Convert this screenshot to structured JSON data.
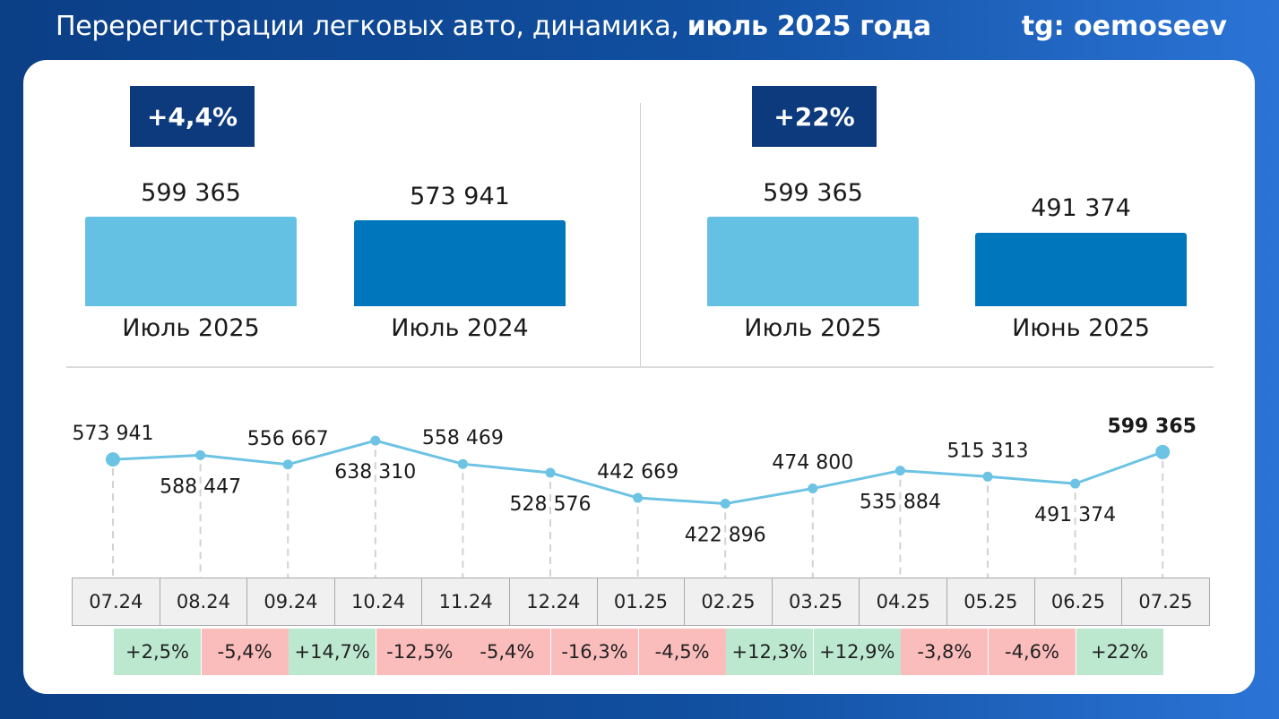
{
  "header": {
    "title_regular": "Перерегистрации легковых авто, динамика,",
    "title_bold": "июль 2025 года",
    "handle": "tg: oemoseev"
  },
  "comparisons": [
    {
      "badge": "+4,4%",
      "bars": [
        {
          "value": 599365,
          "value_label": "599 365",
          "label": "Июль 2025",
          "color": "#65c1e4"
        },
        {
          "value": 573941,
          "value_label": "573 941",
          "label": "Июль 2024",
          "color": "#0077bd"
        }
      ]
    },
    {
      "badge": "+22%",
      "bars": [
        {
          "value": 599365,
          "value_label": "599 365",
          "label": "Июль 2025",
          "color": "#65c1e4"
        },
        {
          "value": 491374,
          "value_label": "491 374",
          "label": "Июнь 2025",
          "color": "#0077bd"
        }
      ]
    }
  ],
  "chart_data": {
    "type": "line",
    "title": "Перерегистрации легковых авто, динамика, июль 2025 года",
    "categories": [
      "07.24",
      "08.24",
      "09.24",
      "10.24",
      "11.24",
      "12.24",
      "01.25",
      "02.25",
      "03.25",
      "04.25",
      "05.25",
      "06.25",
      "07.25"
    ],
    "values": [
      573941,
      588447,
      556667,
      638310,
      558469,
      528576,
      442669,
      422896,
      474800,
      535884,
      515313,
      491374,
      599365
    ],
    "value_labels": [
      "573 941",
      "588 447",
      "556 667",
      "638 310",
      "558 469",
      "528 576",
      "442 669",
      "422 896",
      "474 800",
      "535 884",
      "515 313",
      "491 374",
      "599 365"
    ],
    "changes": [
      "+2,5%",
      "-5,4%",
      "+14,7%",
      "-12,5%",
      "-5,4%",
      "-16,3%",
      "-4,5%",
      "+12,3%",
      "+12,9%",
      "-3,8%",
      "-4,6%",
      "+22%"
    ],
    "change_colors": {
      "positive": "#bce8d0",
      "negative": "#fbbcbc"
    },
    "line_color": "#6cc3e3",
    "xlabel": "",
    "ylabel": "",
    "ylim": [
      400000,
      660000
    ],
    "grid": false
  }
}
